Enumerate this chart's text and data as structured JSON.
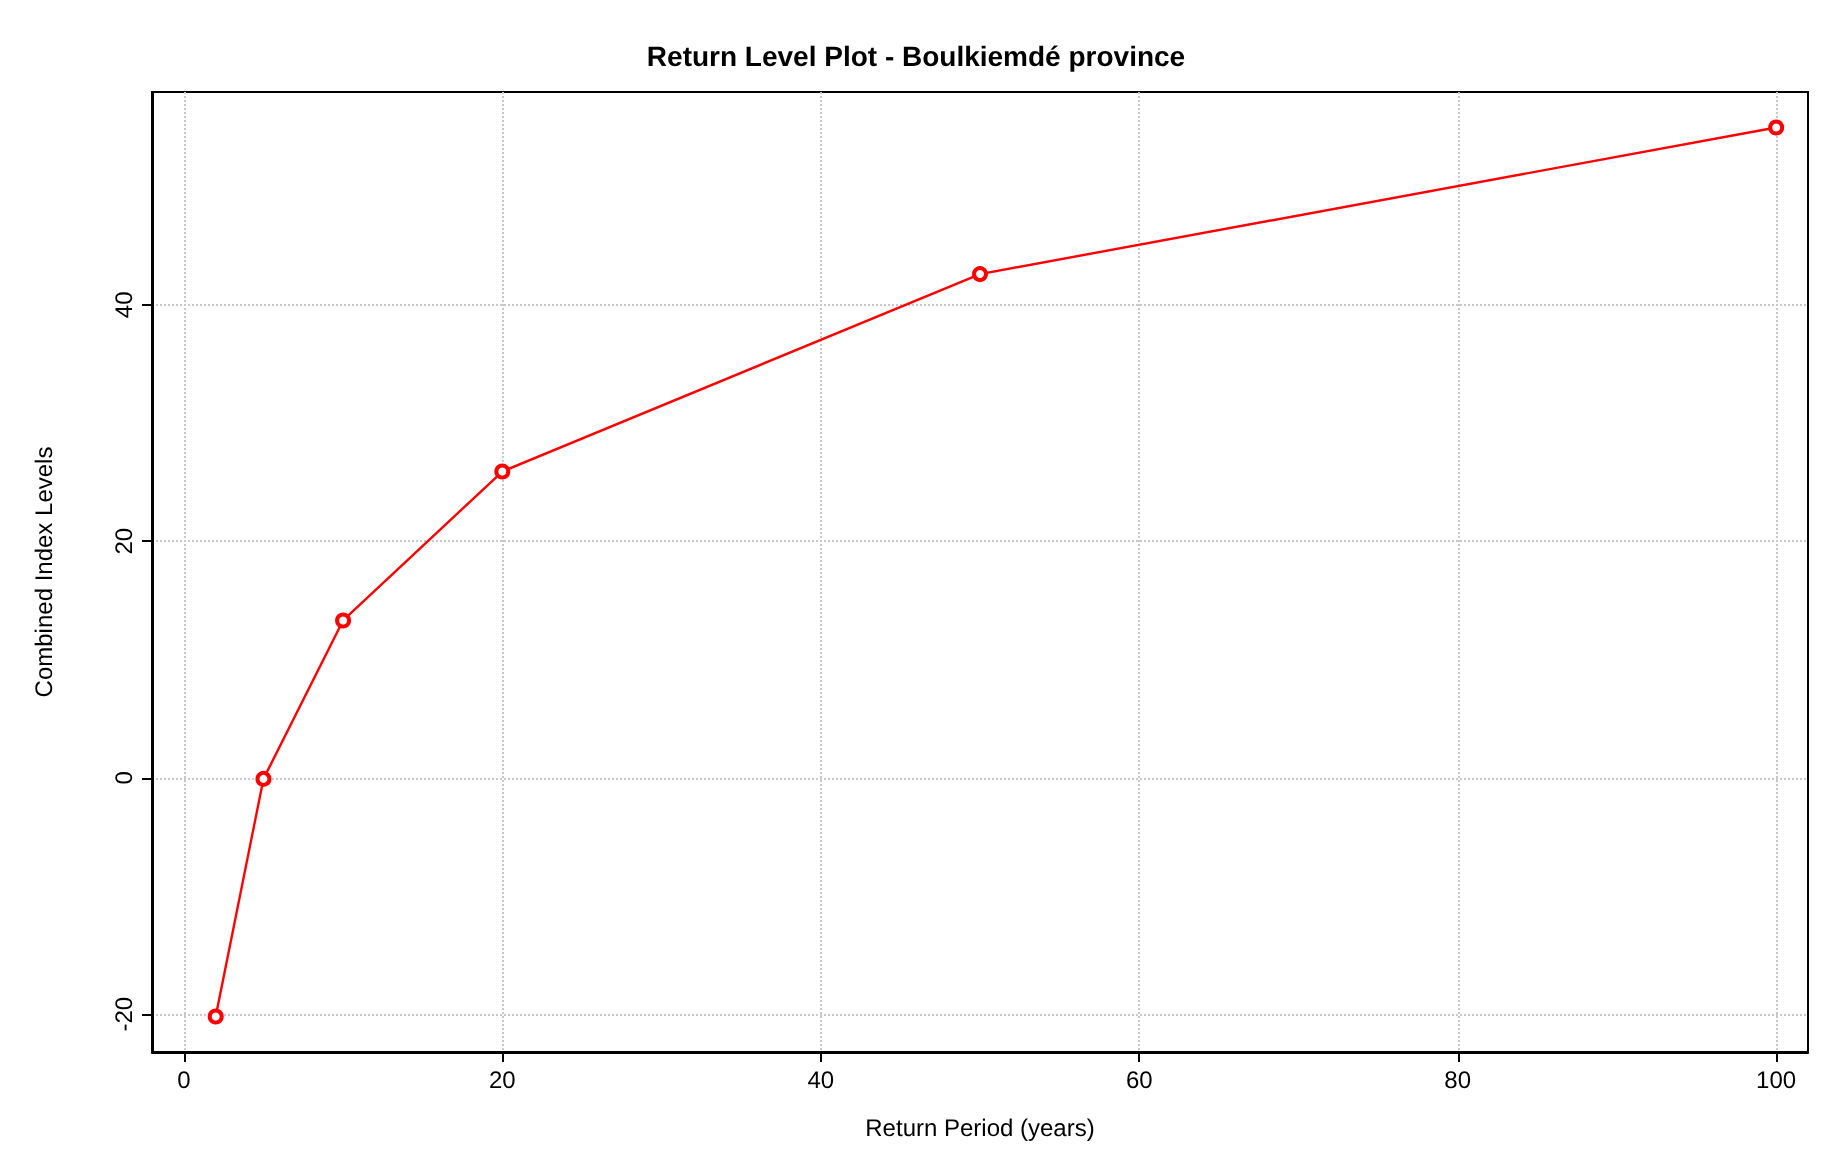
{
  "chart_data": {
    "type": "line",
    "title": "Return Level Plot - Boulkiemdé province",
    "xlabel": "Return Period (years)",
    "ylabel": "Combined Index Levels",
    "x": [
      2,
      5,
      10,
      20,
      50,
      100
    ],
    "series": [
      {
        "color": "#ff0000",
        "values": [
          -20.2,
          -0.1,
          13.3,
          25.9,
          42.6,
          55.0
        ]
      }
    ],
    "xlim": [
      -2,
      102
    ],
    "xticks": [
      0,
      20,
      40,
      60,
      80,
      100
    ],
    "ylim": [
      -23.2,
      58
    ],
    "yticks": [
      -20,
      0,
      20,
      40
    ],
    "grid": true,
    "marker": "circle",
    "line_style": "solid"
  }
}
